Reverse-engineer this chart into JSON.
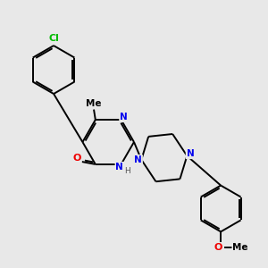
{
  "bg": "#e8e8e8",
  "bond_color": "#000000",
  "bw": 1.4,
  "atom_colors": {
    "N": "#0000ee",
    "O": "#ee0000",
    "Cl": "#00bb00",
    "H": "#555555"
  },
  "fs": 7.5
}
